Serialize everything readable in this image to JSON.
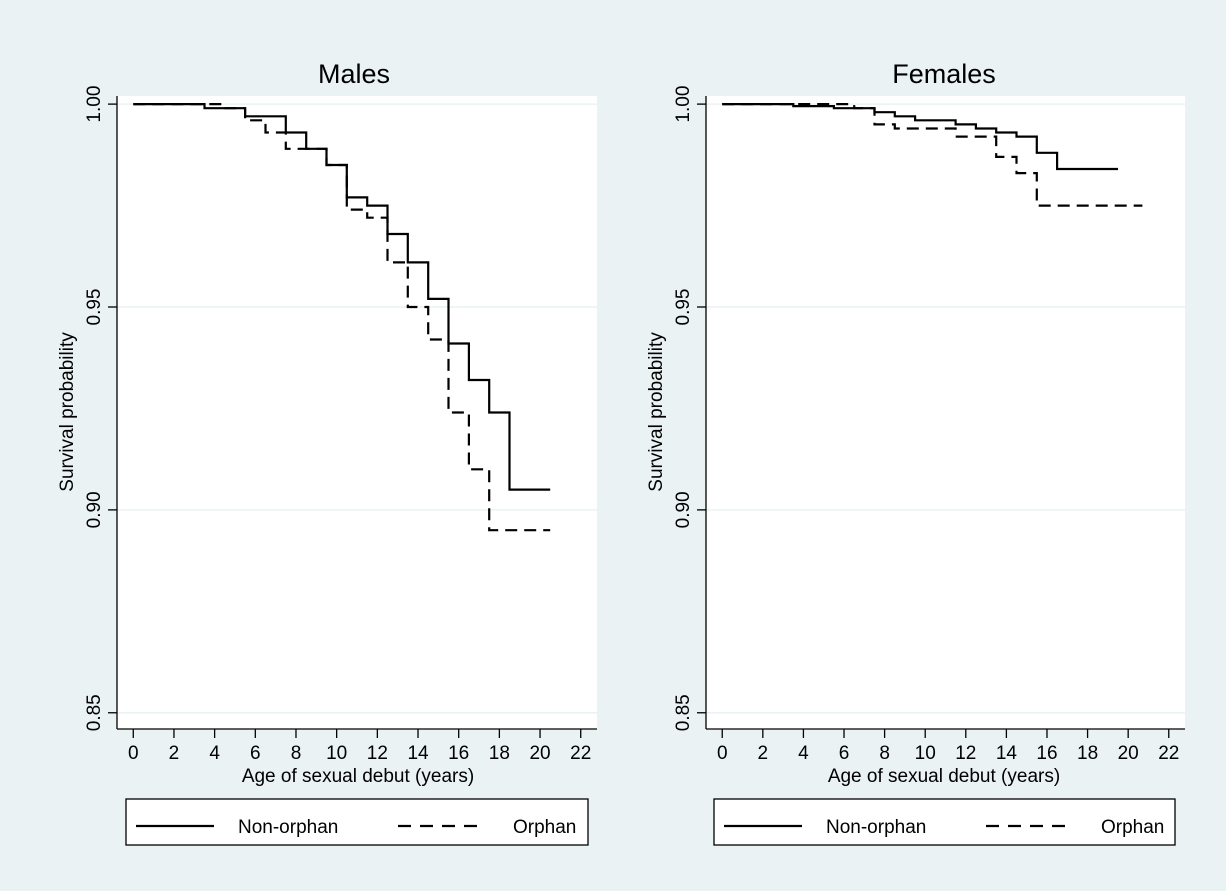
{
  "colors": {
    "outer_bg": "#eaf2f3",
    "plot_bg": "#ffffff",
    "grid": "#eaf2f3",
    "line": "#000000"
  },
  "chart_data": [
    {
      "type": "line",
      "title": "Males",
      "xlabel": "Age of sexual debut (years)",
      "ylabel": "Survival probability",
      "xlim": [
        -0.8,
        22.8
      ],
      "ylim": [
        0.846,
        1.002
      ],
      "xticks": [
        "0",
        "2",
        "4",
        "6",
        "8",
        "10",
        "12",
        "14",
        "16",
        "18",
        "20",
        "22"
      ],
      "yticks": [
        "0.85",
        "0.90",
        "0.95",
        "1.00"
      ],
      "grid": true,
      "legend_position": "bottom",
      "series": [
        {
          "name": "Non-orphan",
          "style": "solid",
          "x": [
            0,
            3.5,
            3.5,
            5.5,
            5.5,
            7.5,
            7.5,
            8.5,
            8.5,
            9.5,
            9.5,
            10.5,
            10.5,
            11.5,
            11.5,
            12.5,
            12.5,
            13.5,
            13.5,
            14.5,
            14.5,
            15.5,
            15.5,
            16.5,
            16.5,
            17.5,
            17.5,
            18.5,
            18.5,
            20.5
          ],
          "y": [
            1.0,
            1.0,
            0.999,
            0.999,
            0.997,
            0.997,
            0.993,
            0.993,
            0.989,
            0.989,
            0.985,
            0.985,
            0.977,
            0.977,
            0.975,
            0.975,
            0.968,
            0.968,
            0.961,
            0.961,
            0.952,
            0.952,
            0.941,
            0.941,
            0.932,
            0.932,
            0.924,
            0.924,
            0.905,
            0.905
          ]
        },
        {
          "name": "Orphan",
          "style": "dashed",
          "x": [
            0,
            4.5,
            4.5,
            5.5,
            5.5,
            6.5,
            6.5,
            7.5,
            7.5,
            9.5,
            9.5,
            10.5,
            10.5,
            11.5,
            11.5,
            12.5,
            12.5,
            13.5,
            13.5,
            14.5,
            14.5,
            15.5,
            15.5,
            16.5,
            16.5,
            17.5,
            17.5,
            20.5
          ],
          "y": [
            1.0,
            1.0,
            0.999,
            0.999,
            0.996,
            0.996,
            0.993,
            0.993,
            0.989,
            0.989,
            0.985,
            0.985,
            0.974,
            0.974,
            0.972,
            0.972,
            0.961,
            0.961,
            0.95,
            0.95,
            0.942,
            0.942,
            0.924,
            0.924,
            0.91,
            0.91,
            0.895,
            0.895
          ]
        }
      ]
    },
    {
      "type": "line",
      "title": "Females",
      "xlabel": "Age of sexual debut (years)",
      "ylabel": "Survival probability",
      "xlim": [
        -0.8,
        22.8
      ],
      "ylim": [
        0.846,
        1.002
      ],
      "xticks": [
        "0",
        "2",
        "4",
        "6",
        "8",
        "10",
        "12",
        "14",
        "16",
        "18",
        "20",
        "22"
      ],
      "yticks": [
        "0.85",
        "0.90",
        "0.95",
        "1.00"
      ],
      "grid": true,
      "legend_position": "bottom",
      "series": [
        {
          "name": "Non-orphan",
          "style": "solid",
          "x": [
            0,
            3.5,
            3.5,
            5.5,
            5.5,
            7.5,
            7.5,
            8.5,
            8.5,
            9.5,
            9.5,
            11.5,
            11.5,
            12.5,
            12.5,
            13.5,
            13.5,
            14.5,
            14.5,
            15.5,
            15.5,
            16.5,
            16.5,
            19.5
          ],
          "y": [
            1.0,
            1.0,
            0.9995,
            0.9995,
            0.999,
            0.999,
            0.998,
            0.998,
            0.997,
            0.997,
            0.996,
            0.996,
            0.995,
            0.995,
            0.994,
            0.994,
            0.993,
            0.993,
            0.992,
            0.992,
            0.988,
            0.988,
            0.984,
            0.984
          ]
        },
        {
          "name": "Orphan",
          "style": "dashed",
          "x": [
            0,
            6.5,
            6.5,
            7.5,
            7.5,
            8.5,
            8.5,
            11.5,
            11.5,
            13.5,
            13.5,
            14.5,
            14.5,
            15.5,
            15.5,
            20.7
          ],
          "y": [
            1.0,
            1.0,
            0.999,
            0.999,
            0.995,
            0.995,
            0.994,
            0.994,
            0.992,
            0.992,
            0.987,
            0.987,
            0.983,
            0.983,
            0.975,
            0.975
          ]
        }
      ]
    }
  ]
}
